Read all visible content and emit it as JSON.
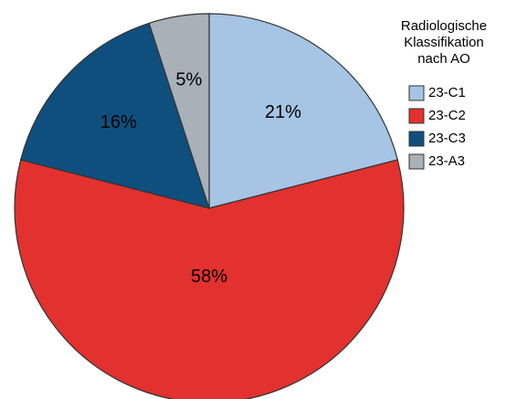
{
  "chart_data": {
    "type": "pie",
    "legend_title": [
      "Radiologische",
      "Klassifikation",
      "nach AO"
    ],
    "categories": [
      "23-C1",
      "23-C2",
      "23-C3",
      "23-A3"
    ],
    "values": [
      21,
      58,
      16,
      5
    ],
    "value_labels": [
      "21%",
      "58%",
      "16%",
      "5%"
    ],
    "colors": [
      "#a6c4e4",
      "#e2312f",
      "#0f4f7e",
      "#a9b1b8"
    ],
    "legend": "top-right"
  }
}
